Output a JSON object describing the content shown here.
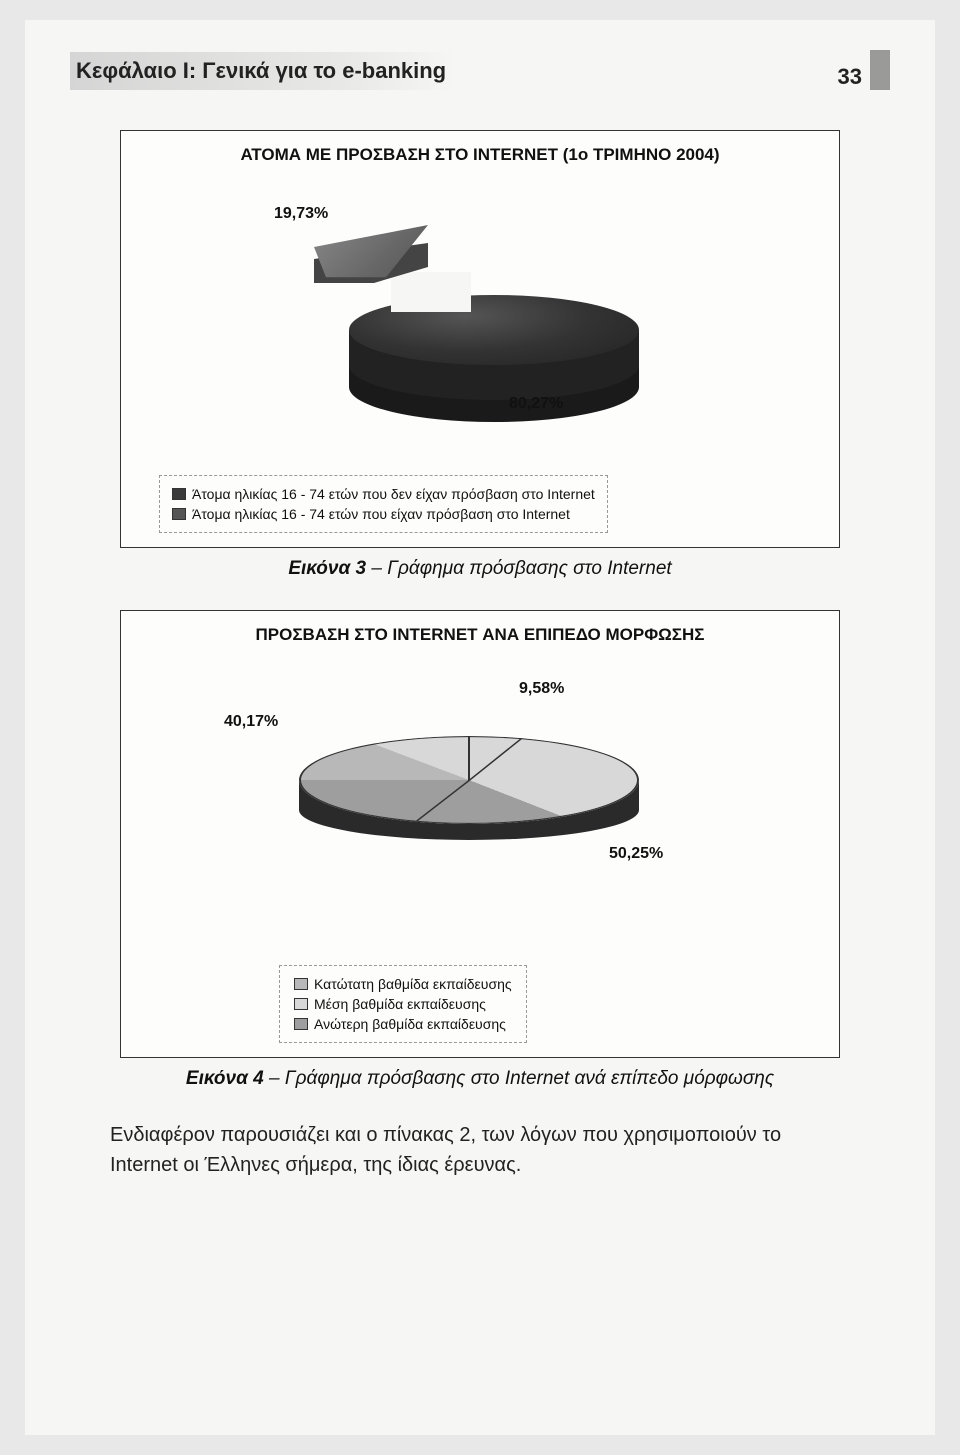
{
  "page": {
    "chapter_heading": "Κεφάλαιο I: Γενικά για το e-banking",
    "page_number": "33"
  },
  "figure3": {
    "type": "pie-3d-exploded",
    "title": "ΑΤΟΜΑ ΜΕ ΠΡΟΣΒΑΣΗ ΣΤΟ INTERNET (1ο ΤΡΙΜΗΝΟ 2004)",
    "slices": [
      {
        "label": "Άτομα ηλικίας 16 - 74 ετών που δεν είχαν πρόσβαση στο Internet",
        "value": 80.27,
        "pct_label": "80,27%",
        "color": "#333333",
        "swatch": "#3a3a3a"
      },
      {
        "label": "Άτομα ηλικίας 16 - 74 ετών που είχαν πρόσβαση στο Internet",
        "value": 19.73,
        "pct_label": "19,73%",
        "color": "#6b6b6b",
        "swatch": "#555555"
      }
    ],
    "background_color": "#fdfdfc",
    "border_color": "#333333",
    "title_fontsize": 17,
    "label_fontsize": 16,
    "legend_fontsize": 14,
    "legend_border": "1px dashed #999999",
    "caption_prefix": "Εικόνα 3",
    "caption_text": " – Γράφημα πρόσβασης στο Internet"
  },
  "figure4": {
    "type": "pie-3d",
    "title": "ΠΡΟΣΒΑΣΗ ΣΤΟ INTERNET ΑΝΑ ΕΠΙΠΕΔΟ ΜΟΡΦΩΣΗΣ",
    "slices": [
      {
        "label": "Κατώτατη βαθμίδα εκπαίδευσης",
        "value": 9.58,
        "pct_label": "9,58%",
        "color": "#b8b8b8",
        "swatch": "#b8b8b8"
      },
      {
        "label": "Μέση βαθμίδα εκπαίδευσης",
        "value": 50.25,
        "pct_label": "50,25%",
        "color": "#d8d8d8",
        "swatch": "#d8d8d8"
      },
      {
        "label": "Ανώτερη βαθμίδα εκπαίδευσης",
        "value": 40.17,
        "pct_label": "40,17%",
        "color": "#9e9e9e",
        "swatch": "#9e9e9e"
      }
    ],
    "start_angle_deg": -90,
    "side_color": "#2a2a2a",
    "outline_color": "#333333",
    "background_color": "#fdfdfc",
    "border_color": "#333333",
    "title_fontsize": 17,
    "label_fontsize": 16,
    "legend_fontsize": 14,
    "legend_border": "1px dashed #999999",
    "caption_prefix": "Εικόνα 4",
    "caption_text": " – Γράφημα πρόσβασης στο Internet ανά επίπεδο μόρφωσης"
  },
  "body_paragraph": "Ενδιαφέρον παρουσιάζει και ο πίνακας 2, των λόγων που χρησιμοποιούν το Internet οι Έλληνες σήμερα, της ίδιας έρευνας."
}
